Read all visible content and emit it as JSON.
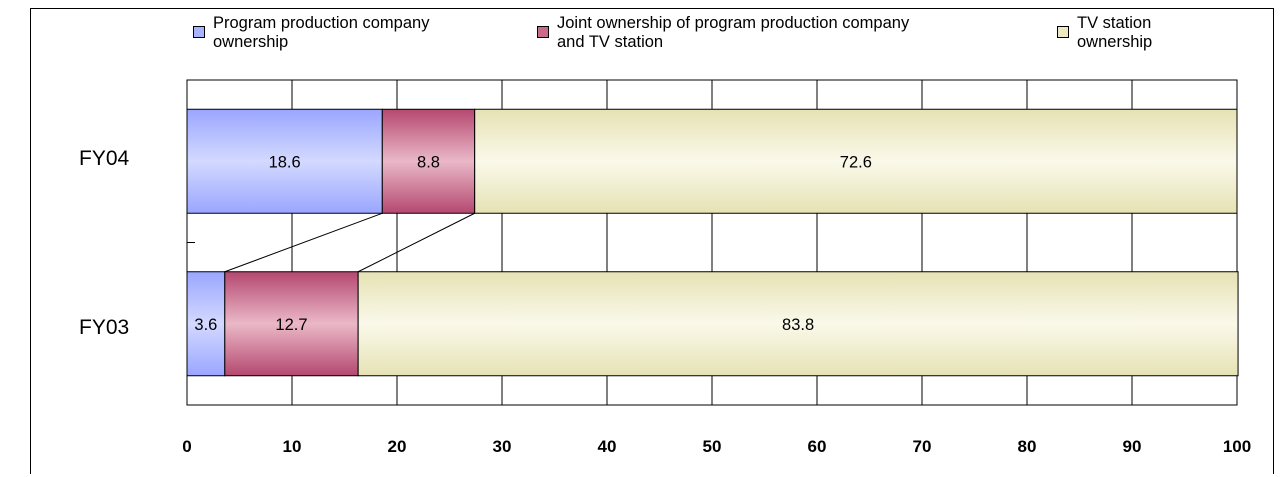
{
  "chart_data": {
    "type": "bar",
    "orientation": "horizontal",
    "stacked": true,
    "categories": [
      "FY04",
      "FY03"
    ],
    "series": [
      {
        "name": "Program production company\nownership",
        "values": [
          18.6,
          3.6
        ],
        "color": "#a9b4ff"
      },
      {
        "name": "Joint ownership of program production company\nand TV station",
        "values": [
          8.8,
          12.7
        ],
        "color": "#c86b89"
      },
      {
        "name": "TV station\nownership",
        "values": [
          72.6,
          83.8
        ],
        "color": "#ece9c3"
      }
    ],
    "xlim": [
      0,
      100
    ],
    "xticks": [
      "0",
      "10",
      "20",
      "30",
      "40",
      "50",
      "60",
      "70",
      "80",
      "90",
      "100"
    ],
    "grid": true,
    "legend_position": "top",
    "connector_lines": true
  }
}
